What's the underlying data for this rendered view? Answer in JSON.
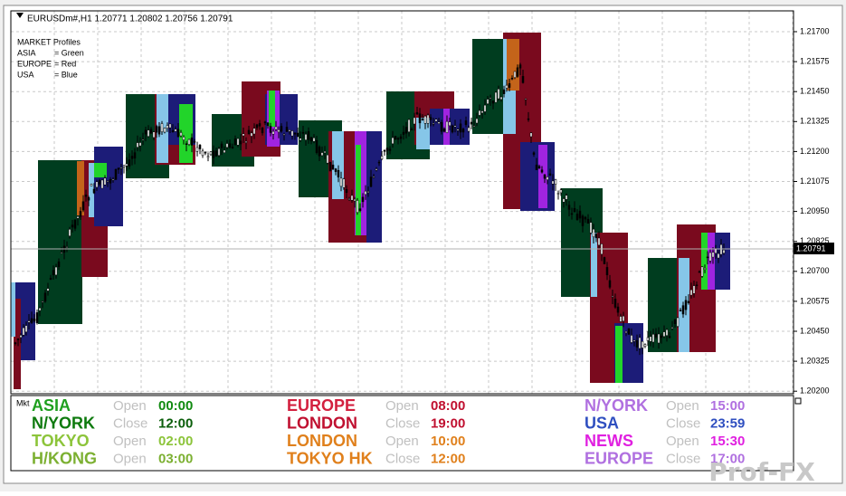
{
  "header": {
    "symbol_line": "EURUSDm#,H1  1.20771 1.20802 1.20756 1.20791"
  },
  "legend": {
    "title": "MARKET Profiles",
    "items": [
      {
        "name": "ASIA",
        "value": "= Green"
      },
      {
        "name": "EUROPE",
        "value": "= Red"
      },
      {
        "name": "USA",
        "value": "= Blue"
      }
    ]
  },
  "price_axis": {
    "labels": [
      "1.21700",
      "1.21575",
      "1.21450",
      "1.21325",
      "1.21200",
      "1.21075",
      "1.20950",
      "1.20825",
      "1.20700",
      "1.20575",
      "1.20450",
      "1.20325",
      "1.20200"
    ],
    "current": "1.20791"
  },
  "panel": {
    "label": "Mkt",
    "columns": [
      [
        {
          "name": "ASIA",
          "name_color": "#1fa01f",
          "status": "Open",
          "time": "00:00",
          "time_color": "#108a10"
        },
        {
          "name": "N/YORK",
          "name_color": "#0e7a0e",
          "status": "Close",
          "time": "12:00",
          "time_color": "#0b5e0b"
        },
        {
          "name": "TOKYO",
          "name_color": "#8cc43a",
          "status": "Open",
          "time": "02:00",
          "time_color": "#8cc43a"
        },
        {
          "name": "H/KONG",
          "name_color": "#7cb032",
          "status": "Open",
          "time": "03:00",
          "time_color": "#7cb032"
        }
      ],
      [
        {
          "name": "EUROPE",
          "name_color": "#d3203f",
          "status": "Open",
          "time": "08:00",
          "time_color": "#c01030"
        },
        {
          "name": "LONDON",
          "name_color": "#c01030",
          "status": "Close",
          "time": "19:00",
          "time_color": "#c01030"
        },
        {
          "name": "LONDON",
          "name_color": "#e0801c",
          "status": "Open",
          "time": "10:00",
          "time_color": "#e0801c"
        },
        {
          "name": "TOKYO HK",
          "name_color": "#e0801c",
          "status": "Close",
          "time": "12:00",
          "time_color": "#e0801c"
        }
      ],
      [
        {
          "name": "N/YORK",
          "name_color": "#b070e0",
          "status": "Open",
          "time": "15:00",
          "time_color": "#b070e0"
        },
        {
          "name": "USA",
          "name_color": "#2f4fc0",
          "status": "Close",
          "time": "23:59",
          "time_color": "#2f4fc0"
        },
        {
          "name": "NEWS",
          "name_color": "#e020e0",
          "status": "Open",
          "time": "15:30",
          "time_color": "#e020e0"
        },
        {
          "name": "EUROPE",
          "name_color": "#b070e0",
          "status": "Close",
          "time": "17:00",
          "time_color": "#b070e0"
        }
      ]
    ]
  },
  "watermark": "Prof-FX"
}
